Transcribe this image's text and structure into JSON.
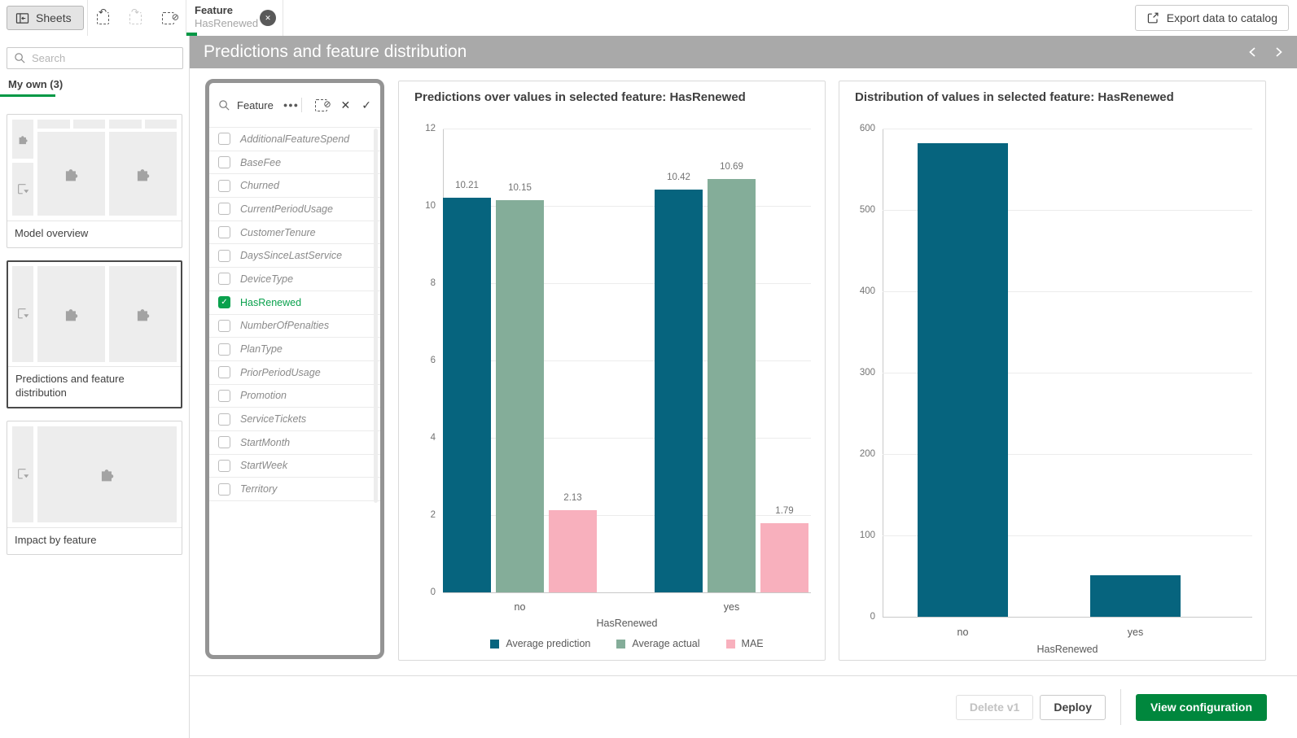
{
  "topbar": {
    "sheets_button": "Sheets",
    "export_button": "Export data to catalog",
    "selection_tab": {
      "field": "Feature",
      "value": "HasRenewed"
    }
  },
  "icons": {
    "undo": "↶",
    "redo": "↷",
    "slash": "⊘",
    "close": "✕",
    "check": "✓",
    "more": "●●●"
  },
  "sheet_header": {
    "title": "Predictions and feature distribution"
  },
  "sidebar": {
    "search_placeholder": "Search",
    "section_tab": "My own (3)",
    "sheets": [
      {
        "label": "Model overview"
      },
      {
        "label": "Predictions and feature distribution"
      },
      {
        "label": "Impact by feature"
      }
    ]
  },
  "filter_panel": {
    "field_label": "Feature",
    "items": [
      {
        "label": "AdditionalFeatureSpend",
        "selected": false
      },
      {
        "label": "BaseFee",
        "selected": false
      },
      {
        "label": "Churned",
        "selected": false
      },
      {
        "label": "CurrentPeriodUsage",
        "selected": false
      },
      {
        "label": "CustomerTenure",
        "selected": false
      },
      {
        "label": "DaysSinceLastService",
        "selected": false
      },
      {
        "label": "DeviceType",
        "selected": false
      },
      {
        "label": "HasRenewed",
        "selected": true
      },
      {
        "label": "NumberOfPenalties",
        "selected": false
      },
      {
        "label": "PlanType",
        "selected": false
      },
      {
        "label": "PriorPeriodUsage",
        "selected": false
      },
      {
        "label": "Promotion",
        "selected": false
      },
      {
        "label": "ServiceTickets",
        "selected": false
      },
      {
        "label": "StartMonth",
        "selected": false
      },
      {
        "label": "StartWeek",
        "selected": false
      },
      {
        "label": "Territory",
        "selected": false
      }
    ]
  },
  "chart_data": [
    {
      "type": "bar",
      "title": "Predictions over values in selected feature: HasRenewed",
      "categories": [
        "no",
        "yes"
      ],
      "series": [
        {
          "name": "Average prediction",
          "color": "#06647e",
          "values": [
            10.21,
            10.42
          ]
        },
        {
          "name": "Average actual",
          "color": "#84ad99",
          "values": [
            10.15,
            10.69
          ]
        },
        {
          "name": "MAE",
          "color": "#f8b0bd",
          "values": [
            2.13,
            1.79
          ]
        }
      ],
      "xlabel": "HasRenewed",
      "ylim": [
        0,
        12
      ],
      "yticks": [
        0,
        2,
        4,
        6,
        8,
        10,
        12
      ],
      "grid": true,
      "value_labels": true,
      "legend_position": "bottom"
    },
    {
      "type": "bar",
      "title": "Distribution of values in selected feature: HasRenewed",
      "categories": [
        "no",
        "yes"
      ],
      "values": [
        582,
        51
      ],
      "color": "#06647e",
      "xlabel": "HasRenewed",
      "ylim": [
        0,
        600
      ],
      "yticks": [
        0,
        100,
        200,
        300,
        400,
        500,
        600
      ],
      "grid": true,
      "value_labels": false,
      "legend_position": "none"
    }
  ],
  "footer": {
    "delete_button": "Delete v1",
    "deploy_button": "Deploy",
    "view_config_button": "View configuration"
  },
  "colors": {
    "accent_green": "#009845",
    "selected_green": "#0aa14d",
    "button_green": "#00873d",
    "header_gray": "#a9a9a9",
    "bar_teal": "#06647e",
    "bar_sage": "#84ad99",
    "bar_pink": "#f8b0bd"
  }
}
